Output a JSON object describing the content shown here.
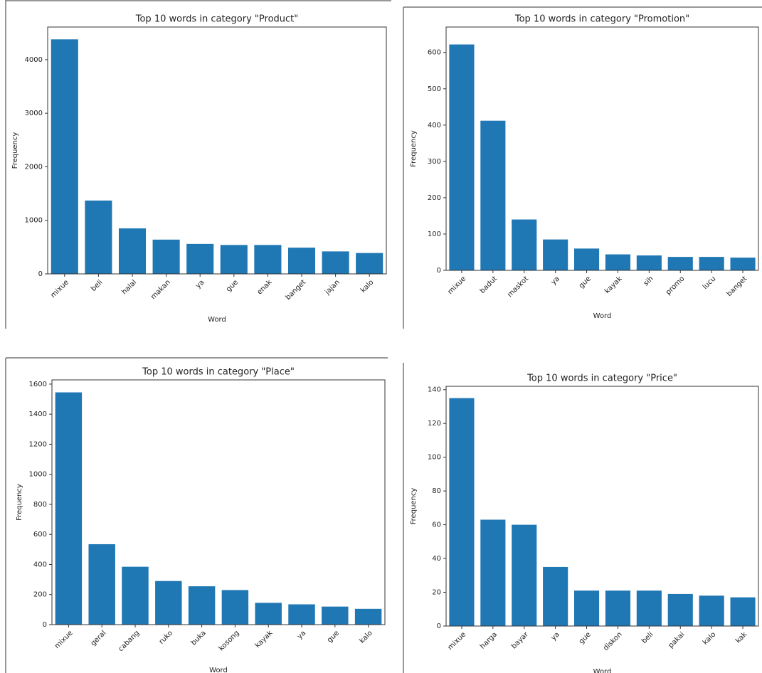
{
  "chart_data": [
    {
      "type": "bar",
      "title": "Top 10 words in category \"Product\"",
      "x_label": "Word",
      "y_label": "Frequency",
      "categories": [
        "mixue",
        "beli",
        "halal",
        "makan",
        "ya",
        "gue",
        "enak",
        "banget",
        "jajan",
        "kalo"
      ],
      "values": [
        4380,
        1370,
        850,
        640,
        560,
        540,
        540,
        490,
        420,
        390
      ],
      "color": "#1f77b4",
      "ylim": [
        0,
        4610
      ],
      "yticks": [
        0,
        1000,
        2000,
        3000,
        4000
      ]
    },
    {
      "type": "bar",
      "title": "Top 10 words in category \"Promotion\"",
      "x_label": "Word",
      "y_label": "Frequency",
      "categories": [
        "mixue",
        "badut",
        "maskot",
        "ya",
        "gue",
        "kayak",
        "sih",
        "promo",
        "lucu",
        "banget"
      ],
      "values": [
        622,
        412,
        140,
        85,
        60,
        44,
        41,
        37,
        37,
        35
      ],
      "color": "#1f77b4",
      "ylim": [
        0,
        670
      ],
      "yticks": [
        0,
        100,
        200,
        300,
        400,
        500,
        600
      ]
    },
    {
      "type": "bar",
      "title": "Top 10 words in category \"Place\"",
      "x_label": "Word",
      "y_label": "Frequency",
      "categories": [
        "mixue",
        "geral",
        "cabang",
        "ruko",
        "buka",
        "kosong",
        "kayak",
        "ya",
        "gue",
        "kalo"
      ],
      "values": [
        1545,
        535,
        385,
        290,
        255,
        230,
        145,
        135,
        120,
        105
      ],
      "color": "#1f77b4",
      "ylim": [
        0,
        1628
      ],
      "yticks": [
        0,
        200,
        400,
        600,
        800,
        1000,
        1200,
        1400,
        1600
      ]
    },
    {
      "type": "bar",
      "title": "Top 10 words in category \"Price\"",
      "x_label": "Word",
      "y_label": "Frequency",
      "categories": [
        "mixue",
        "harga",
        "bayar",
        "ya",
        "gue",
        "diskon",
        "beli",
        "pakai",
        "kalo",
        "kak"
      ],
      "values": [
        135,
        63,
        60,
        35,
        21,
        21,
        21,
        19,
        18,
        17
      ],
      "color": "#1f77b4",
      "ylim": [
        0,
        142
      ],
      "yticks": [
        0,
        20,
        40,
        60,
        80,
        100,
        120,
        140
      ]
    }
  ]
}
